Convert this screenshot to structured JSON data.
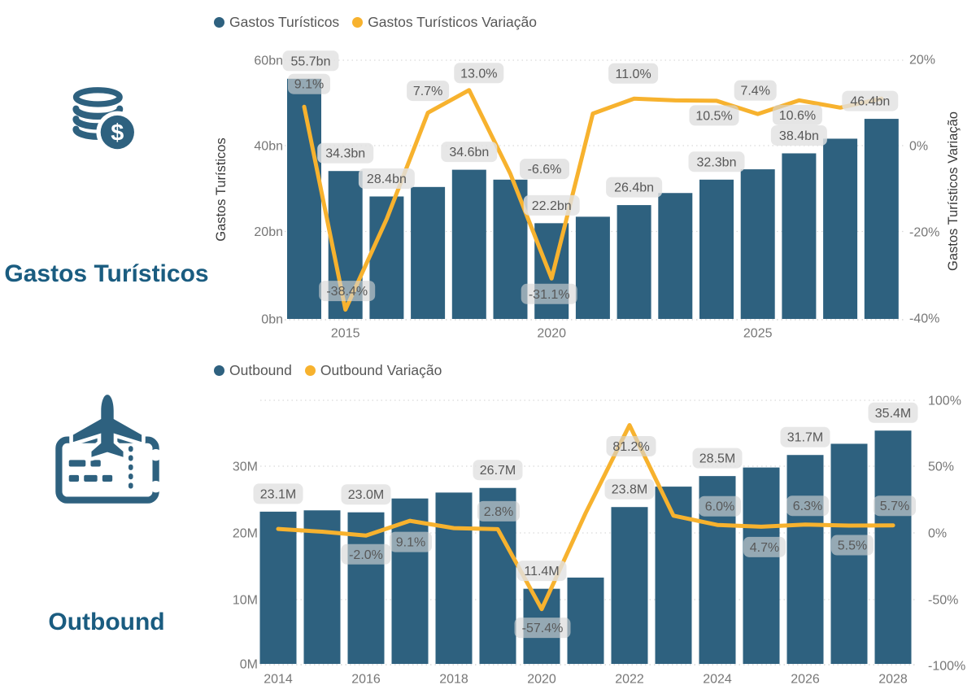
{
  "colors": {
    "bar": "#2E617F",
    "line": "#F7B22E",
    "section_title": "#1A5C80",
    "icon": "#2E617F",
    "tick_text": "#777777",
    "axis_title_text": "#3A3A3A",
    "label_text": "#585858",
    "label_bg": "#E4E4E4"
  },
  "sections": [
    {
      "title": "Gastos Turísticos",
      "icon": "coins-dollar-icon"
    },
    {
      "title": "Outbound",
      "icon": "plane-ticket-icon"
    }
  ],
  "chart_data": [
    {
      "type": "bar",
      "combo": "bar+line",
      "title": "Gastos Turísticos",
      "legend_position": "top",
      "grid": true,
      "legend": [
        {
          "label": "Gastos Turísticos",
          "color": "#2E617F",
          "series_type": "bar"
        },
        {
          "label": "Gastos Turísticos Variação",
          "color": "#F7B22E",
          "series_type": "line"
        }
      ],
      "x": [
        2014,
        2015,
        2016,
        2017,
        2018,
        2019,
        2020,
        2021,
        2022,
        2023,
        2024,
        2025,
        2026,
        2027,
        2028
      ],
      "x_tick_labels": [
        "2015",
        "2020",
        "2025"
      ],
      "y_left": {
        "title": "Gastos Turísticos",
        "tick_labels": [
          "60bn",
          "40bn",
          "20bn",
          "0bn"
        ],
        "range": [
          0,
          60
        ],
        "unit": "bn"
      },
      "y_right": {
        "title": "Gastos Turísticos Variação",
        "tick_labels": [
          "20%",
          "0%",
          "-20%",
          "-40%"
        ],
        "range": [
          -40,
          20
        ],
        "unit": "%"
      },
      "series": [
        {
          "name": "Gastos Turísticos",
          "type": "bar",
          "axis": "left",
          "values": [
            55.7,
            34.3,
            28.4,
            30.6,
            34.6,
            32.3,
            22.2,
            23.7,
            26.4,
            29.2,
            32.3,
            34.7,
            38.4,
            41.8,
            46.4
          ],
          "labels": [
            "55.7bn",
            "34.3bn",
            "28.4bn",
            null,
            "34.6bn",
            null,
            "22.2bn",
            null,
            "26.4bn",
            null,
            "32.3bn",
            null,
            "38.4bn",
            null,
            "46.4bn"
          ]
        },
        {
          "name": "Gastos Turísticos Variação",
          "type": "line",
          "axis": "right",
          "values": [
            9.1,
            -38.4,
            -17.2,
            7.7,
            13.0,
            -6.6,
            -31.1,
            7.5,
            11.0,
            10.6,
            10.5,
            7.4,
            10.6,
            8.9,
            11.0
          ],
          "labels": [
            "9.1%",
            "-38.4%",
            null,
            "7.7%",
            "13.0%",
            "-6.6%",
            "-31.1%",
            null,
            "11.0%",
            null,
            "10.5%",
            "7.4%",
            "10.6%",
            null,
            null
          ]
        }
      ]
    },
    {
      "type": "bar",
      "combo": "bar+line",
      "title": "Outbound",
      "legend_position": "top",
      "grid": true,
      "legend": [
        {
          "label": "Outbound",
          "color": "#2E617F",
          "series_type": "bar"
        },
        {
          "label": "Outbound Variação",
          "color": "#F7B22E",
          "series_type": "line"
        }
      ],
      "x": [
        2014,
        2015,
        2016,
        2017,
        2018,
        2019,
        2020,
        2021,
        2022,
        2023,
        2024,
        2025,
        2026,
        2027,
        2028
      ],
      "x_tick_labels": [
        "2014",
        "2016",
        "2018",
        "2020",
        "2022",
        "2024",
        "2026",
        "2028"
      ],
      "y_left": {
        "title": "",
        "tick_labels": [
          "30M",
          "20M",
          "10M",
          "0M"
        ],
        "range": [
          0,
          30
        ],
        "unit": "M"
      },
      "y_right": {
        "title": "",
        "tick_labels": [
          "100%",
          "50%",
          "0%",
          "-50%",
          "-100%"
        ],
        "range": [
          -100,
          100
        ],
        "unit": "%"
      },
      "series": [
        {
          "name": "Outbound",
          "type": "bar",
          "axis": "left",
          "values": [
            23.1,
            23.3,
            23.0,
            25.1,
            26.0,
            26.7,
            11.4,
            13.1,
            23.8,
            26.9,
            28.5,
            29.8,
            31.7,
            33.4,
            35.4
          ],
          "labels": [
            "23.1M",
            null,
            "23.0M",
            null,
            null,
            "26.7M",
            "11.4M",
            null,
            "23.8M",
            null,
            "28.5M",
            null,
            "31.7M",
            null,
            "35.4M"
          ]
        },
        {
          "name": "Outbound Variação",
          "type": "line",
          "axis": "right",
          "values": [
            3.0,
            0.9,
            -2.0,
            9.1,
            3.6,
            2.8,
            -57.4,
            14.9,
            81.2,
            13.0,
            6.0,
            4.7,
            6.3,
            5.5,
            5.7
          ],
          "labels": [
            null,
            null,
            "-2.0%",
            "9.1%",
            null,
            "2.8%",
            "-57.4%",
            null,
            "81.2%",
            null,
            "6.0%",
            "4.7%",
            "6.3%",
            "5.5%",
            "5.7%"
          ]
        }
      ]
    }
  ]
}
